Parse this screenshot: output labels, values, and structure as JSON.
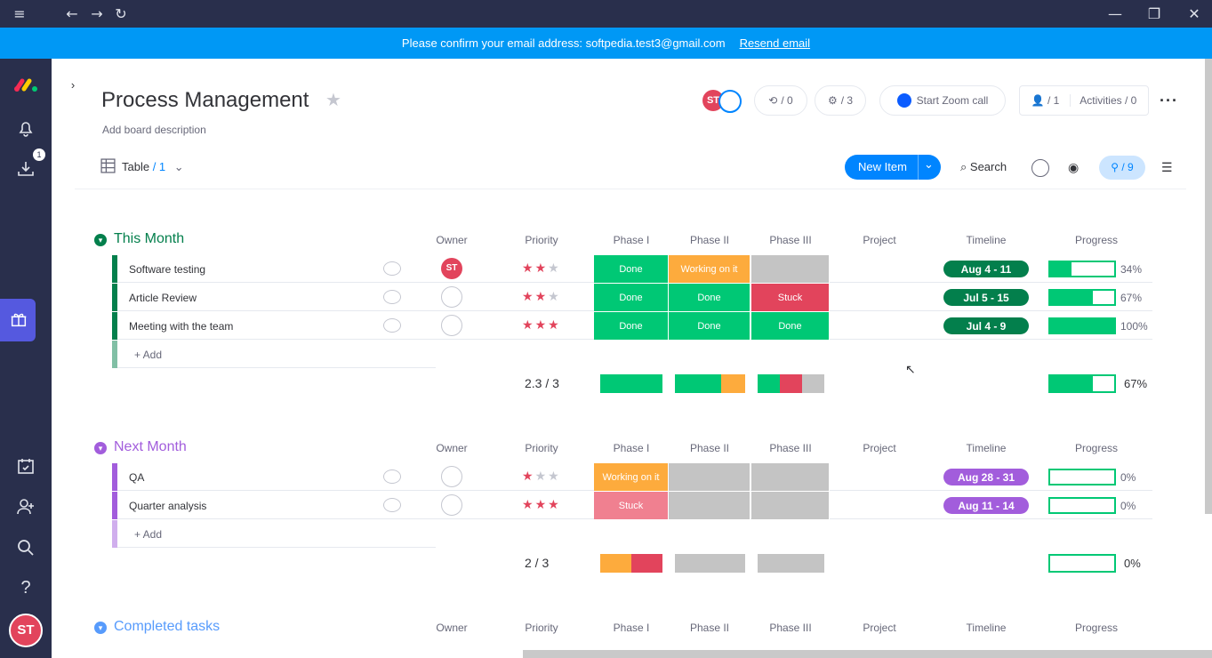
{
  "window": {
    "controls": [
      "minimize",
      "maximize",
      "close"
    ]
  },
  "banner": {
    "text": "Please confirm your email address: softpedia.test3@gmail.com",
    "link": "Resend email"
  },
  "sidebar": {
    "badge": "1",
    "avatar": "ST"
  },
  "header": {
    "title": "Process Management",
    "description": "Add board description",
    "avatar": "ST",
    "updates": "/ 0",
    "integrations": "/ 3",
    "zoom": "Start Zoom call",
    "members": "/ 1",
    "activities": "Activities / 0"
  },
  "toolbar": {
    "view": "Table",
    "view_count": "/ 1",
    "new_item": "New Item",
    "search": "Search",
    "pins": "/ 9"
  },
  "columns": [
    "Owner",
    "Priority",
    "Phase I",
    "Phase II",
    "Phase III",
    "Project",
    "Timeline",
    "Progress"
  ],
  "add_label": "+ Add",
  "groups": [
    {
      "title": "This Month",
      "color": "#037f4c",
      "title_color": "#037f4c",
      "summary_priority": "2.3  / 3",
      "summary_progress": "67%",
      "items": [
        {
          "name": "Software testing",
          "owner": "ST",
          "stars": 2,
          "p1": "Done",
          "p2": "Working on it",
          "p3": "",
          "timeline": "Aug 4 - 11",
          "progress": "34%",
          "progress_value": 0.34
        },
        {
          "name": "Article Review",
          "owner": "",
          "stars": 2,
          "p1": "Done",
          "p2": "Done",
          "p3": "Stuck",
          "timeline": "Jul 5 - 15",
          "progress": "67%",
          "progress_value": 0.67
        },
        {
          "name": "Meeting with the team",
          "owner": "",
          "stars": 3,
          "p1": "Done",
          "p2": "Done",
          "p3": "Done",
          "timeline": "Jul 4 - 9",
          "progress": "100%",
          "progress_value": 1.0
        }
      ]
    },
    {
      "title": "Next Month",
      "color": "#a25ddc",
      "title_color": "#a25ddc",
      "summary_priority": "2  / 3",
      "summary_progress": "0%",
      "items": [
        {
          "name": "QA",
          "owner": "",
          "stars": 1,
          "p1": "Working on it",
          "p2": "",
          "p3": "",
          "timeline": "Aug 28 - 31",
          "progress": "0%",
          "progress_value": 0
        },
        {
          "name": "Quarter analysis",
          "owner": "",
          "stars": 3,
          "p1": "Stuck",
          "p2": "",
          "p3": "",
          "timeline": "Aug 11 - 14",
          "progress": "0%",
          "progress_value": 0
        }
      ]
    },
    {
      "title": "Completed tasks",
      "color": "#579bfc",
      "title_color": "#579bfc"
    }
  ],
  "status_colors": {
    "Done": "#00c875",
    "Working on it": "#fdab3d",
    "Stuck": "#e2445c",
    "": "#c4c4c4"
  }
}
